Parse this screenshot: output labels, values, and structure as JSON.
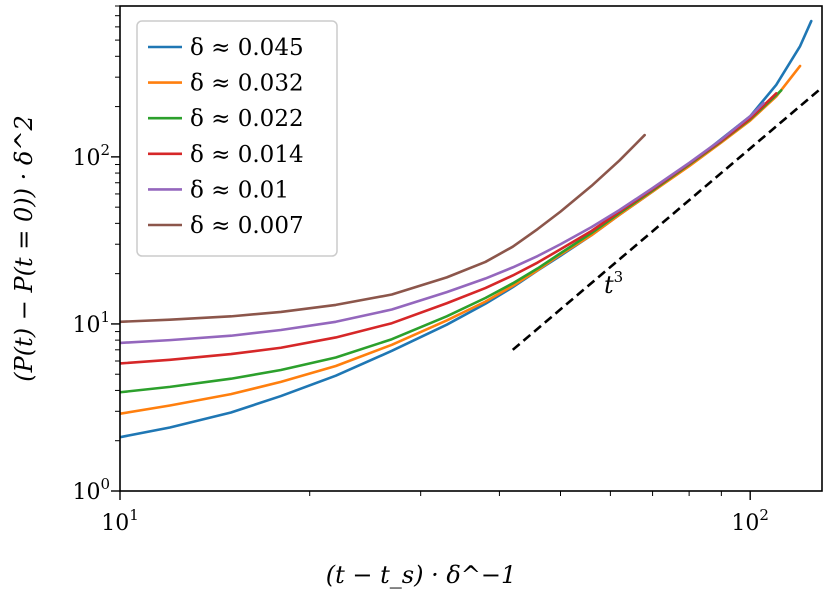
{
  "chart_data": {
    "type": "line",
    "xscale": "log",
    "yscale": "log",
    "xlim": [
      10,
      130
    ],
    "ylim": [
      1,
      800
    ],
    "grid": false,
    "legend_placement": "top-left",
    "xlabel": "(t − t_s) · δ^−1",
    "ylabel": "(P(t) − P(t = 0)) · δ^2",
    "x_ticks": [
      {
        "base": "10",
        "exp": "1",
        "value": 10
      },
      {
        "base": "10",
        "exp": "2",
        "value": 100
      }
    ],
    "y_ticks": [
      {
        "base": "10",
        "exp": "0",
        "value": 1
      },
      {
        "base": "10",
        "exp": "1",
        "value": 10
      },
      {
        "base": "10",
        "exp": "2",
        "value": 100
      }
    ],
    "series": [
      {
        "name": "δ ≈ 0.045",
        "color": "#1f77b4",
        "x": [
          10,
          12,
          15,
          18,
          22,
          27,
          33,
          38,
          42,
          46,
          50,
          56,
          62,
          70,
          80,
          90,
          100,
          110,
          120,
          125
        ],
        "y": [
          2.1,
          2.4,
          2.95,
          3.7,
          4.9,
          6.9,
          9.9,
          13.2,
          16.6,
          20.9,
          25.6,
          34,
          45,
          62,
          90,
          128,
          175,
          270,
          460,
          650
        ]
      },
      {
        "name": "δ ≈ 0.032",
        "color": "#ff7f0e",
        "x": [
          10,
          12,
          15,
          18,
          22,
          27,
          33,
          38,
          42,
          46,
          50,
          56,
          62,
          70,
          80,
          90,
          100,
          110,
          120
        ],
        "y": [
          2.9,
          3.25,
          3.8,
          4.5,
          5.6,
          7.5,
          10.5,
          13.6,
          16.9,
          21,
          26,
          34,
          45,
          62,
          88,
          122,
          165,
          230,
          350
        ]
      },
      {
        "name": "δ ≈ 0.022",
        "color": "#2ca02c",
        "x": [
          10,
          12,
          15,
          18,
          22,
          27,
          33,
          38,
          42,
          46,
          50,
          56,
          62,
          70,
          80,
          90,
          100,
          112
        ],
        "y": [
          3.9,
          4.2,
          4.7,
          5.3,
          6.3,
          8.1,
          11.1,
          14.3,
          17.5,
          21.5,
          26.5,
          35,
          46,
          63,
          90,
          124,
          168,
          250
        ]
      },
      {
        "name": "δ ≈ 0.014",
        "color": "#d62728",
        "x": [
          10,
          12,
          15,
          18,
          22,
          27,
          33,
          38,
          42,
          46,
          50,
          56,
          62,
          70,
          80,
          90,
          100,
          110
        ],
        "y": [
          5.8,
          6.1,
          6.6,
          7.2,
          8.3,
          10.1,
          13.3,
          16.4,
          19.5,
          23.3,
          28,
          36,
          47,
          64,
          91,
          125,
          170,
          240
        ]
      },
      {
        "name": "δ ≈ 0.01",
        "color": "#9467bd",
        "x": [
          10,
          12,
          15,
          18,
          22,
          27,
          33,
          38,
          42,
          46,
          50,
          56,
          62,
          70,
          80,
          90,
          100,
          105
        ],
        "y": [
          7.7,
          8.0,
          8.5,
          9.2,
          10.3,
          12.2,
          15.5,
          18.7,
          21.8,
          25.5,
          30,
          38,
          48,
          65,
          92,
          127,
          175,
          210
        ]
      },
      {
        "name": "δ ≈ 0.007",
        "color": "#8c564b",
        "x": [
          10,
          12,
          15,
          18,
          22,
          27,
          33,
          38,
          42,
          46,
          50,
          56,
          62,
          68
        ],
        "y": [
          10.3,
          10.6,
          11.1,
          11.8,
          13.0,
          15.0,
          19.0,
          23.5,
          29,
          37,
          47,
          67,
          95,
          135
        ]
      }
    ],
    "reference_line": {
      "label": "t",
      "label_exp": "3",
      "color": "#000000",
      "style": "dashed",
      "x": [
        42,
        130
      ],
      "y": [
        7,
        260
      ]
    }
  }
}
